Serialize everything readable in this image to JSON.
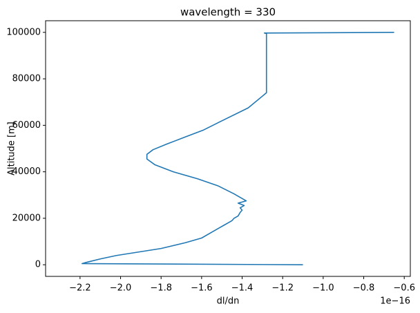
{
  "chart_data": {
    "type": "line",
    "title": "wavelength = 330",
    "x_label": "dl/dn",
    "y_label": "Altitude [m]",
    "x_offset_label": "1e−16",
    "xlim": [
      -2.37,
      -0.57
    ],
    "ylim": [
      -5000,
      105000
    ],
    "xticks": [
      {
        "value": -2.2,
        "label": "−2.2"
      },
      {
        "value": -2.0,
        "label": "−2.0"
      },
      {
        "value": -1.8,
        "label": "−1.8"
      },
      {
        "value": -1.6,
        "label": "−1.6"
      },
      {
        "value": -1.4,
        "label": "−1.4"
      },
      {
        "value": -1.2,
        "label": "−1.2"
      },
      {
        "value": -1.0,
        "label": "−1.0"
      },
      {
        "value": -0.8,
        "label": "−0.8"
      },
      {
        "value": -0.6,
        "label": "−0.6"
      }
    ],
    "yticks": [
      0,
      20000,
      40000,
      60000,
      80000,
      100000
    ],
    "x": [
      -1.1,
      -2.19,
      -2.17,
      -2.1,
      -2.02,
      -1.8,
      -1.68,
      -1.6,
      -1.55,
      -1.51,
      -1.49,
      -1.47,
      -1.45,
      -1.44,
      -1.42,
      -1.41,
      -1.4,
      -1.41,
      -1.39,
      -1.42,
      -1.4,
      -1.38,
      -1.4,
      -1.44,
      -1.52,
      -1.62,
      -1.74,
      -1.83,
      -1.87,
      -1.87,
      -1.84,
      -1.77,
      -1.68,
      -1.59,
      -1.51,
      -1.37,
      -1.28,
      -1.28,
      -1.29,
      -0.65
    ],
    "series": [
      {
        "color": "#1f77b4",
        "values": [
          0,
          500,
          1000,
          2500,
          4000,
          7000,
          9500,
          11500,
          14000,
          16000,
          17000,
          18000,
          19000,
          20000,
          21000,
          22500,
          23500,
          24500,
          25500,
          26500,
          27000,
          27500,
          28500,
          30500,
          34000,
          37000,
          40000,
          43000,
          45500,
          47500,
          49500,
          52000,
          55000,
          58000,
          61500,
          67500,
          74000,
          99500,
          99700,
          100000
        ]
      }
    ]
  }
}
